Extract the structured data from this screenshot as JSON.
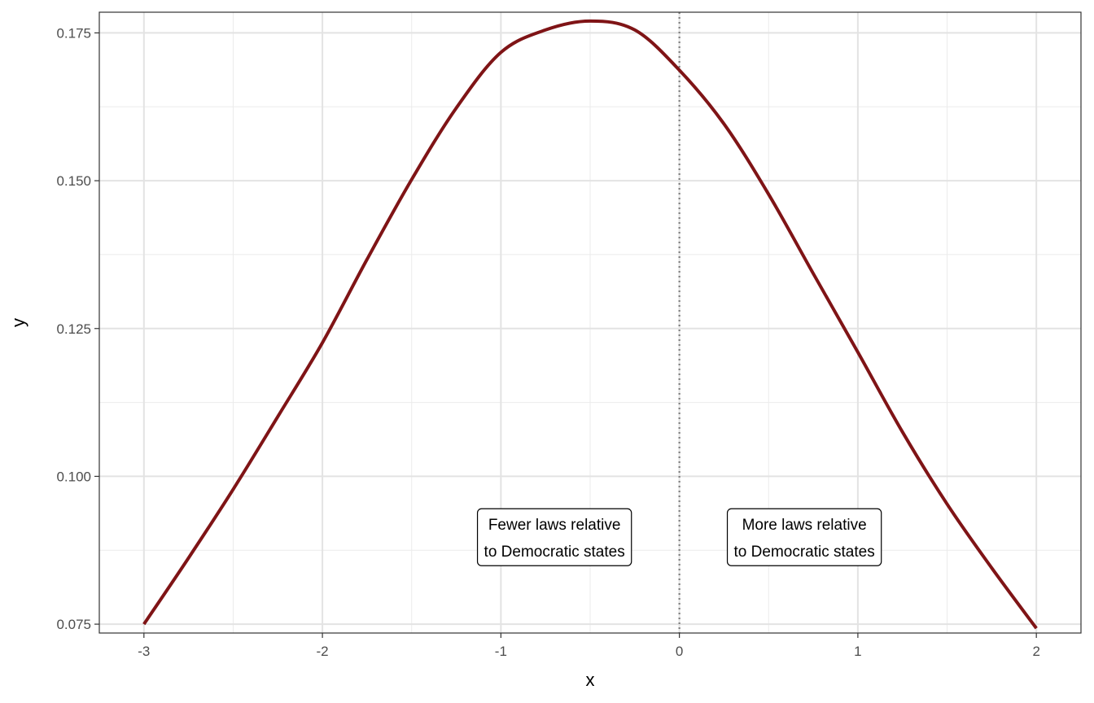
{
  "chart_data": {
    "type": "line",
    "xlabel": "x",
    "ylabel": "y",
    "xlim": [
      -3.25,
      2.25
    ],
    "ylim": [
      0.0735,
      0.1785
    ],
    "x_ticks": [
      -3,
      -2,
      -1,
      0,
      1,
      2
    ],
    "x_tick_labels": [
      "-3",
      "-2",
      "-1",
      "0",
      "1",
      "2"
    ],
    "y_ticks": [
      0.075,
      0.1,
      0.125,
      0.15,
      0.175
    ],
    "y_tick_labels": [
      "0.075",
      "0.100",
      "0.125",
      "0.150",
      "0.175"
    ],
    "grid": true,
    "vline": {
      "x": 0,
      "style": "dotted",
      "color": "#7f7f7f"
    },
    "series": [
      {
        "color": "#7f1416",
        "x": [
          -3.0,
          -2.75,
          -2.5,
          -2.25,
          -2.0,
          -1.75,
          -1.5,
          -1.25,
          -1.0,
          -0.75,
          -0.5,
          -0.25,
          0.0,
          0.25,
          0.5,
          0.75,
          1.0,
          1.25,
          1.5,
          1.75,
          2.0
        ],
        "y": [
          0.075,
          0.0862,
          0.0978,
          0.1101,
          0.1226,
          0.1367,
          0.1502,
          0.1623,
          0.1717,
          0.1755,
          0.177,
          0.1755,
          0.1687,
          0.1596,
          0.1477,
          0.1343,
          0.121,
          0.1075,
          0.0953,
          0.0845,
          0.0743
        ]
      }
    ],
    "annotations": [
      {
        "x": -0.7,
        "y": 0.0897,
        "lines": [
          "Fewer laws relative",
          "to Democratic states"
        ]
      },
      {
        "x": 0.7,
        "y": 0.0897,
        "lines": [
          "More laws relative",
          "to Democratic states"
        ]
      }
    ]
  }
}
